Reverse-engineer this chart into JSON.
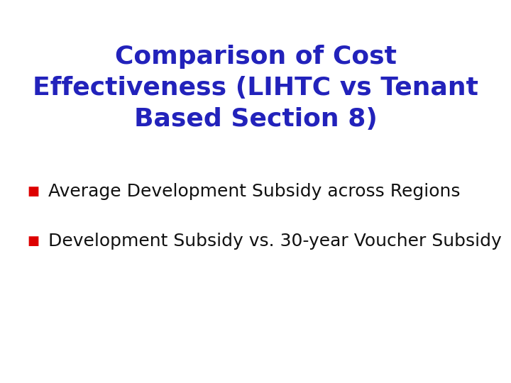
{
  "title_line1": "Comparison of Cost",
  "title_line2": "Effectiveness (LIHTC vs Tenant",
  "title_line3": "Based Section 8)",
  "bullet1": "Average Development Subsidy across Regions",
  "bullet2": "Development Subsidy vs. 30-year Voucher Subsidy",
  "title_color": "#2222bb",
  "bullet_color": "#111111",
  "bullet_marker_color": "#dd0000",
  "background_color": "#ffffff",
  "title_fontsize": 26,
  "bullet_fontsize": 18,
  "marker_fontsize": 13
}
